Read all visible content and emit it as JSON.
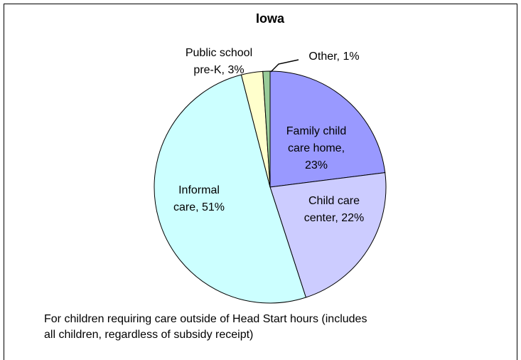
{
  "chart_data": {
    "type": "pie",
    "title": "Iowa",
    "values": [
      23,
      22,
      51,
      3,
      1
    ],
    "labels": [
      [
        "Family child",
        "care home,",
        "23%"
      ],
      [
        "Child care",
        "center, 22%"
      ],
      [
        "Informal",
        "care, 51%"
      ],
      [
        "Public school",
        "pre-K, 3%"
      ],
      [
        "Other, 1%"
      ]
    ],
    "colors": [
      "#9999ff",
      "#ccccff",
      "#ccffff",
      "#ffffcc",
      "#99cc99"
    ],
    "note": [
      "For children requiring care outside of Head Start hours (includes",
      "all children, regardless of subsidy receipt)"
    ]
  }
}
